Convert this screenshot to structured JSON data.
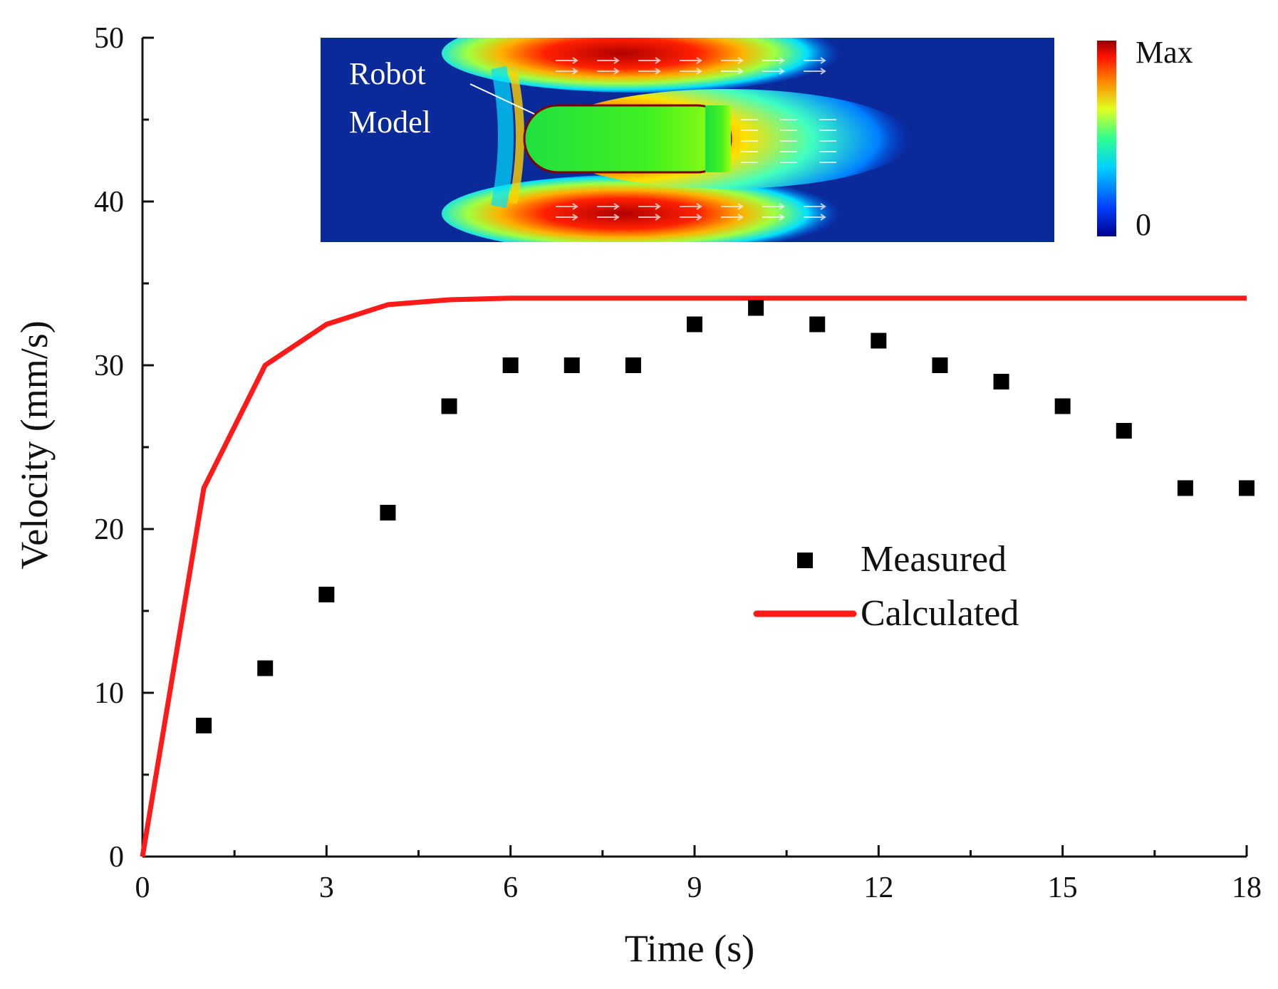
{
  "colors": {
    "measured": "#000000",
    "calculated": "#ff1a1a",
    "axis": "#111111",
    "inset_background": "#0a2a9a"
  },
  "chart_data": {
    "type": "scatter+line",
    "xlabel": "Time (s)",
    "ylabel": "Velocity (mm/s)",
    "xlim": [
      0,
      18
    ],
    "ylim": [
      0,
      50
    ],
    "x_ticks": [
      0,
      3,
      6,
      9,
      12,
      15,
      18
    ],
    "x_tick_labels": [
      "0",
      "3",
      "6",
      "9",
      "12",
      "15",
      "18"
    ],
    "y_ticks": [
      0,
      10,
      20,
      30,
      40,
      50
    ],
    "y_tick_labels": [
      "0",
      "10",
      "20",
      "30",
      "40",
      "50"
    ],
    "legend_placement": "center-right",
    "series": [
      {
        "name": "Measured",
        "kind": "scatter",
        "marker": "square",
        "x": [
          1,
          2,
          3,
          4,
          5,
          6,
          7,
          8,
          9,
          10,
          11,
          12,
          13,
          14,
          15,
          16,
          17,
          18
        ],
        "y": [
          8,
          11.5,
          16,
          21,
          27.5,
          30,
          30,
          30,
          32.5,
          33.5,
          32.5,
          31.5,
          30,
          29,
          27.5,
          26,
          22.5,
          22.5
        ]
      },
      {
        "name": "Calculated",
        "kind": "line",
        "x": [
          0,
          1,
          2,
          3,
          4,
          5,
          6,
          8,
          10,
          12,
          14,
          16,
          18
        ],
        "y": [
          0,
          22.5,
          30,
          32.5,
          33.7,
          34,
          34.1,
          34.1,
          34.1,
          34.1,
          34.1,
          34.1,
          34.1
        ]
      }
    ],
    "inset": {
      "description_label": "Robot\nModel",
      "label_line1": "Robot",
      "label_line2": "Model",
      "colorbar_max_label": "Max",
      "colorbar_min_label": "0"
    }
  }
}
